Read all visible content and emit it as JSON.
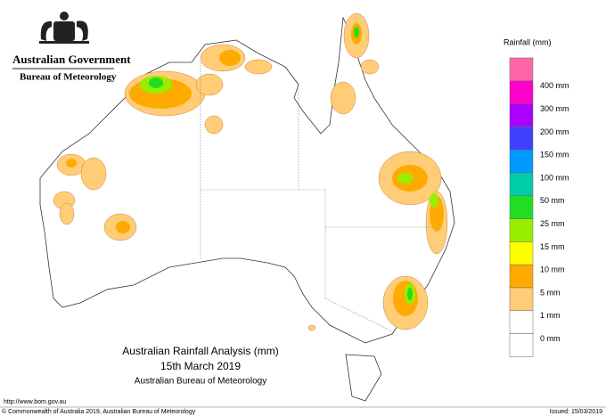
{
  "header": {
    "government": "Australian Government",
    "agency": "Bureau of Meteorology"
  },
  "map_title": {
    "title": "Australian Rainfall Analysis (mm)",
    "date": "15th March 2019",
    "source": "Australian Bureau of Meteorology"
  },
  "legend": {
    "title": "Rainfall (mm)",
    "items": [
      {
        "label": "400 mm",
        "color": "#ff00cc"
      },
      {
        "label": "300 mm",
        "color": "#aa00ff"
      },
      {
        "label": "200 mm",
        "color": "#4040ff"
      },
      {
        "label": "150 mm",
        "color": "#0099ff"
      },
      {
        "label": "100 mm",
        "color": "#00ccaa"
      },
      {
        "label": "50 mm",
        "color": "#22dd22"
      },
      {
        "label": "25 mm",
        "color": "#99ee00"
      },
      {
        "label": "15 mm",
        "color": "#ffff00"
      },
      {
        "label": "10 mm",
        "color": "#ffaa00"
      },
      {
        "label": "5 mm",
        "color": "#ffcc77"
      },
      {
        "label": "1 mm",
        "color": "#ffffff"
      },
      {
        "label": "0 mm",
        "color": "#ffffff"
      }
    ],
    "top_color": "#ff66aa"
  },
  "footer": {
    "url": "http://www.bom.gov.au",
    "copyright": "© Commonwealth of Australia 2019, Australian Bureau of Meteorology",
    "issued": "Issued: 15/03/2019"
  }
}
